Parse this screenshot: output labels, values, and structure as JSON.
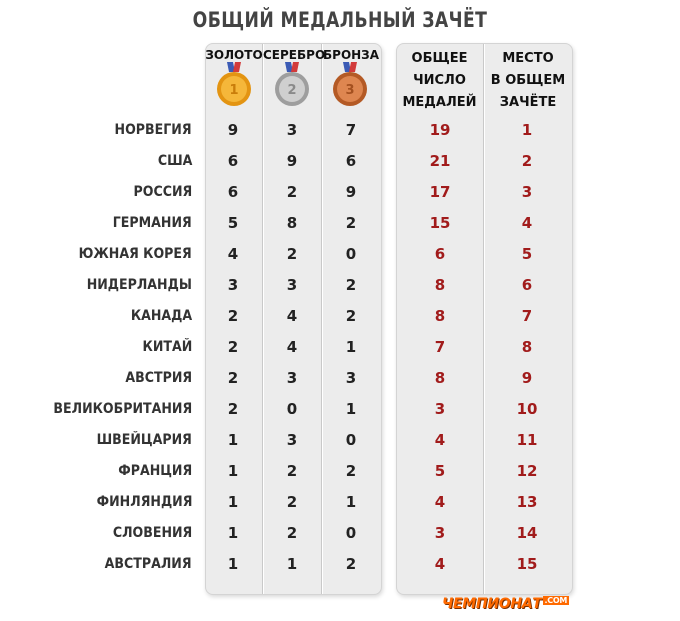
{
  "title": "ОБЩИЙ МЕДАЛЬНЫЙ ЗАЧЁТ",
  "headers": {
    "gold": "ЗОЛОТО",
    "silver": "СЕРЕБРО",
    "bronze": "БРОНЗА",
    "total_lines": [
      "ОБЩЕЕ",
      "ЧИСЛО",
      "МЕДАЛЕЙ"
    ],
    "place_lines": [
      "МЕСТО",
      "В ОБЩЕМ",
      "ЗАЧЁТЕ"
    ]
  },
  "medal_icons": [
    {
      "name": "gold-medal-icon",
      "color": "#f2a81e",
      "label": "1"
    },
    {
      "name": "silver-medal-icon",
      "color": "#b8b8b8",
      "label": "2"
    },
    {
      "name": "bronze-medal-icon",
      "color": "#d2743a",
      "label": "3"
    }
  ],
  "rows": [
    {
      "country": "НОРВЕГИЯ",
      "gold": "9",
      "silver": "3",
      "bronze": "7",
      "total": "19",
      "place": "1"
    },
    {
      "country": "США",
      "gold": "6",
      "silver": "9",
      "bronze": "6",
      "total": "21",
      "place": "2"
    },
    {
      "country": "РОССИЯ",
      "gold": "6",
      "silver": "2",
      "bronze": "9",
      "total": "17",
      "place": "3"
    },
    {
      "country": "ГЕРМАНИЯ",
      "gold": "5",
      "silver": "8",
      "bronze": "2",
      "total": "15",
      "place": "4"
    },
    {
      "country": "ЮЖНАЯ КОРЕЯ",
      "gold": "4",
      "silver": "2",
      "bronze": "0",
      "total": "6",
      "place": "5"
    },
    {
      "country": "НИДЕРЛАНДЫ",
      "gold": "3",
      "silver": "3",
      "bronze": "2",
      "total": "8",
      "place": "6"
    },
    {
      "country": "КАНАДА",
      "gold": "2",
      "silver": "4",
      "bronze": "2",
      "total": "8",
      "place": "7"
    },
    {
      "country": "КИТАЙ",
      "gold": "2",
      "silver": "4",
      "bronze": "1",
      "total": "7",
      "place": "8"
    },
    {
      "country": "АВСТРИЯ",
      "gold": "2",
      "silver": "3",
      "bronze": "3",
      "total": "8",
      "place": "9"
    },
    {
      "country": "ВЕЛИКОБРИТАНИЯ",
      "gold": "2",
      "silver": "0",
      "bronze": "1",
      "total": "3",
      "place": "10"
    },
    {
      "country": "ШВЕЙЦАРИЯ",
      "gold": "1",
      "silver": "3",
      "bronze": "0",
      "total": "4",
      "place": "11"
    },
    {
      "country": "ФРАНЦИЯ",
      "gold": "1",
      "silver": "2",
      "bronze": "2",
      "total": "5",
      "place": "12"
    },
    {
      "country": "ФИНЛЯНДИЯ",
      "gold": "1",
      "silver": "2",
      "bronze": "1",
      "total": "4",
      "place": "13"
    },
    {
      "country": "СЛОВЕНИЯ",
      "gold": "1",
      "silver": "2",
      "bronze": "0",
      "total": "3",
      "place": "14"
    },
    {
      "country": "АВСТРАЛИЯ",
      "gold": "1",
      "silver": "1",
      "bronze": "2",
      "total": "4",
      "place": "15"
    }
  ],
  "logo": {
    "main": "ЧЕМПИОНАТ",
    "suffix": ".COM"
  },
  "colors": {
    "accent_red": "#a11b1b",
    "logo_orange": "#ff6a00"
  }
}
